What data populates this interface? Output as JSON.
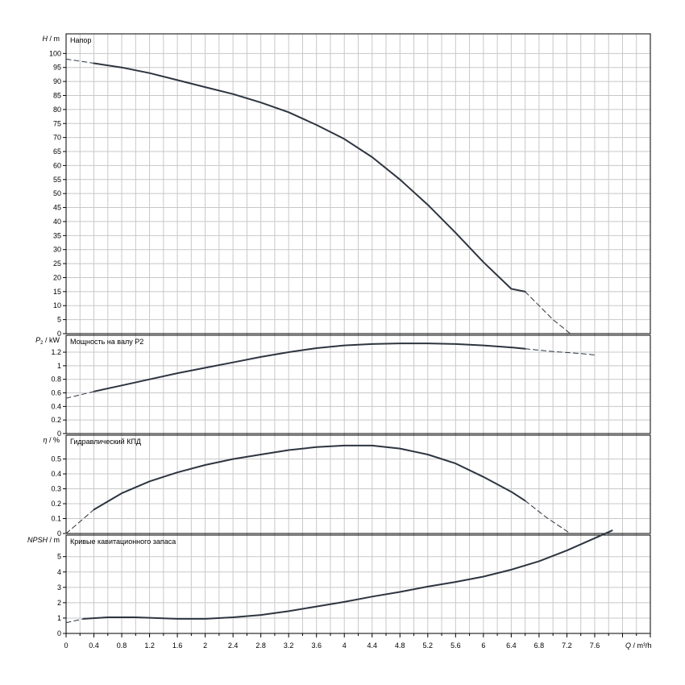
{
  "chart_data": {
    "type": "line",
    "x_axis": {
      "label_symbol": "Q",
      "label_unit": " / m³/h",
      "range": [
        0,
        8.4
      ],
      "tick_values": [
        0,
        0.4,
        0.8,
        1.2,
        1.6,
        2,
        2.4,
        2.8,
        3.2,
        3.6,
        4,
        4.4,
        4.8,
        5.2,
        5.6,
        6,
        6.4,
        6.8,
        7.2,
        7.6
      ],
      "tick_labels": [
        "0",
        "0.4",
        "0.8",
        "1.2",
        "1.6",
        "2",
        "2.4",
        "2.8",
        "3.2",
        "3.6",
        "4",
        "4.4",
        "4.8",
        "5.2",
        "5.6",
        "6",
        "6.4",
        "6.8",
        "7.2",
        "7.6"
      ]
    },
    "grid": true,
    "panels": [
      {
        "name": "head",
        "title": "Напор",
        "ylabel_symbol": "H",
        "ylabel_unit": " / m",
        "ylim": [
          0,
          107
        ],
        "y_ticks": [
          0,
          5,
          10,
          15,
          20,
          25,
          30,
          35,
          40,
          45,
          50,
          55,
          60,
          65,
          70,
          75,
          80,
          85,
          90,
          95,
          100
        ],
        "y_tick_labels": [
          "0",
          "5",
          "10",
          "15",
          "20",
          "25",
          "30",
          "35",
          "40",
          "45",
          "50",
          "55",
          "60",
          "65",
          "70",
          "75",
          "80",
          "85",
          "90",
          "95",
          "100"
        ],
        "series": [
          {
            "style": "dashed",
            "x": [
              0,
              0.4
            ],
            "y": [
              98,
              96.5
            ]
          },
          {
            "style": "solid",
            "x": [
              0.4,
              0.8,
              1.2,
              1.6,
              2,
              2.4,
              2.8,
              3.2,
              3.6,
              4,
              4.4,
              4.8,
              5.2,
              5.6,
              6,
              6.4,
              6.6
            ],
            "y": [
              96.5,
              95,
              93,
              90.5,
              88,
              85.5,
              82.5,
              79,
              74.5,
              69.5,
              63,
              55,
              46,
              36,
              25.5,
              16,
              15
            ]
          },
          {
            "style": "dashed",
            "x": [
              6.6,
              6.8,
              7,
              7.25
            ],
            "y": [
              15,
              10,
              5,
              0
            ]
          }
        ]
      },
      {
        "name": "power",
        "title": "Мощность на валу P2",
        "ylabel_symbol": "P",
        "ylabel_sub": "2",
        "ylabel_unit": " / kW",
        "ylim": [
          0,
          1.45
        ],
        "y_ticks": [
          0,
          0.2,
          0.4,
          0.6,
          0.8,
          1,
          1.2
        ],
        "y_tick_labels": [
          "0",
          "0.2",
          "0.4",
          "0.6",
          "0.8",
          "1",
          "1.2"
        ],
        "series": [
          {
            "style": "dashed",
            "x": [
              0,
              0.4
            ],
            "y": [
              0.52,
              0.62
            ]
          },
          {
            "style": "solid",
            "x": [
              0.4,
              0.8,
              1.2,
              1.6,
              2,
              2.4,
              2.8,
              3.2,
              3.6,
              4,
              4.4,
              4.8,
              5.2,
              5.6,
              6,
              6.4,
              6.6
            ],
            "y": [
              0.62,
              0.71,
              0.8,
              0.89,
              0.97,
              1.05,
              1.13,
              1.2,
              1.26,
              1.3,
              1.32,
              1.33,
              1.33,
              1.32,
              1.3,
              1.27,
              1.25
            ]
          },
          {
            "style": "dashed",
            "x": [
              6.6,
              7,
              7.4,
              7.6
            ],
            "y": [
              1.25,
              1.21,
              1.18,
              1.16
            ]
          }
        ]
      },
      {
        "name": "efficiency",
        "title": "Гидравлический КПД",
        "ylabel_symbol": "η",
        "ylabel_unit": " / %",
        "ylim": [
          0,
          0.66
        ],
        "y_ticks": [
          0,
          0.1,
          0.2,
          0.3,
          0.4,
          0.5
        ],
        "y_tick_labels": [
          "0",
          "0.1",
          "0.2",
          "0.3",
          "0.4",
          "0.5"
        ],
        "series": [
          {
            "style": "dashed",
            "x": [
              0,
              0.4
            ],
            "y": [
              0,
              0.16
            ]
          },
          {
            "style": "solid",
            "x": [
              0.4,
              0.8,
              1.2,
              1.6,
              2,
              2.4,
              2.8,
              3.2,
              3.6,
              4,
              4.4,
              4.8,
              5.2,
              5.6,
              6,
              6.4,
              6.6
            ],
            "y": [
              0.16,
              0.27,
              0.35,
              0.41,
              0.46,
              0.5,
              0.53,
              0.56,
              0.58,
              0.59,
              0.59,
              0.57,
              0.53,
              0.47,
              0.38,
              0.28,
              0.22
            ]
          },
          {
            "style": "dashed",
            "x": [
              6.6,
              6.9,
              7.25
            ],
            "y": [
              0.22,
              0.11,
              0
            ]
          }
        ]
      },
      {
        "name": "npsh",
        "title": "Кривые кавитационного запаса",
        "ylabel_symbol": "NPSH",
        "ylabel_unit": " / m",
        "ylim": [
          0,
          6.4
        ],
        "y_ticks": [
          0,
          1,
          2,
          3,
          4,
          5
        ],
        "y_tick_labels": [
          "0",
          "1",
          "2",
          "3",
          "4",
          "5"
        ],
        "series": [
          {
            "style": "dashed",
            "x": [
              0,
              0.25
            ],
            "y": [
              0.7,
              0.95
            ]
          },
          {
            "style": "solid",
            "x": [
              0.25,
              0.6,
              1,
              1.6,
              2,
              2.4,
              2.8,
              3.2,
              3.6,
              4,
              4.4,
              4.8,
              5.2,
              5.6,
              6,
              6.4,
              6.8,
              7.2,
              7.6,
              7.85
            ],
            "y": [
              0.95,
              1.05,
              1.05,
              0.95,
              0.95,
              1.05,
              1.2,
              1.45,
              1.75,
              2.05,
              2.4,
              2.7,
              3.05,
              3.35,
              3.7,
              4.15,
              4.7,
              5.4,
              6.2,
              6.7
            ]
          }
        ]
      }
    ]
  }
}
